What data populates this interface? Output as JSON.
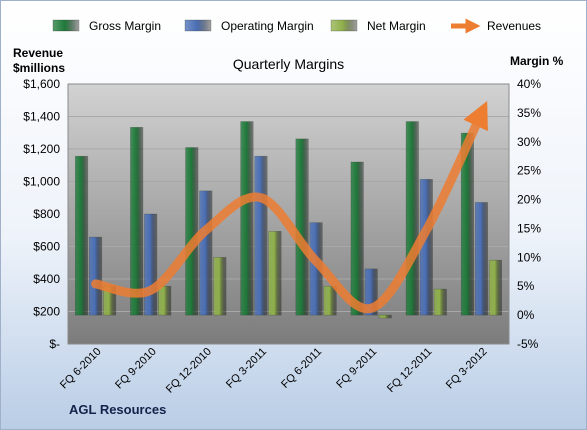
{
  "chart_data": {
    "type": "bar",
    "title": "Quarterly Margins",
    "company": "AGL Resources",
    "left_axis_label": [
      "Revenue",
      "$millions"
    ],
    "right_axis_label": "Margin %",
    "left_ticks": [
      "$-",
      "$200",
      "$400",
      "$600",
      "$800",
      "$1,000",
      "$1,200",
      "$1,400",
      "$1,600"
    ],
    "right_ticks": [
      "-5%",
      "0%",
      "5%",
      "10%",
      "15%",
      "20%",
      "25%",
      "30%",
      "35%",
      "40%"
    ],
    "left_ylim": [
      0,
      1600
    ],
    "right_ylim": [
      -5,
      40
    ],
    "grid": true,
    "legend_position": "top",
    "categories": [
      "FQ 6-2010",
      "FQ 9-2010",
      "FQ 12-2010",
      "FQ 3-2011",
      "FQ 6-2011",
      "FQ 9-2011",
      "FQ 12-2011",
      "FQ 3-2012"
    ],
    "series": [
      {
        "name": "Gross Margin",
        "axis": "right",
        "kind": "bar",
        "color": "#1f7a3a",
        "values": [
          27.5,
          32.5,
          29.0,
          33.5,
          30.5,
          26.5,
          33.5,
          31.5
        ]
      },
      {
        "name": "Operating Margin",
        "axis": "right",
        "kind": "bar",
        "color": "#4a6fb5",
        "values": [
          13.5,
          17.5,
          21.5,
          27.5,
          16.0,
          8.0,
          23.5,
          19.5
        ]
      },
      {
        "name": "Net Margin",
        "axis": "right",
        "kind": "bar",
        "color": "#8fb04a",
        "values": [
          5.0,
          5.0,
          10.0,
          14.5,
          5.0,
          -0.5,
          4.5,
          9.5
        ]
      },
      {
        "name": "Revenues",
        "axis": "left",
        "kind": "line",
        "color": "#ed7d31",
        "values": [
          370,
          330,
          700,
          900,
          510,
          220,
          700,
          1420
        ]
      }
    ]
  }
}
